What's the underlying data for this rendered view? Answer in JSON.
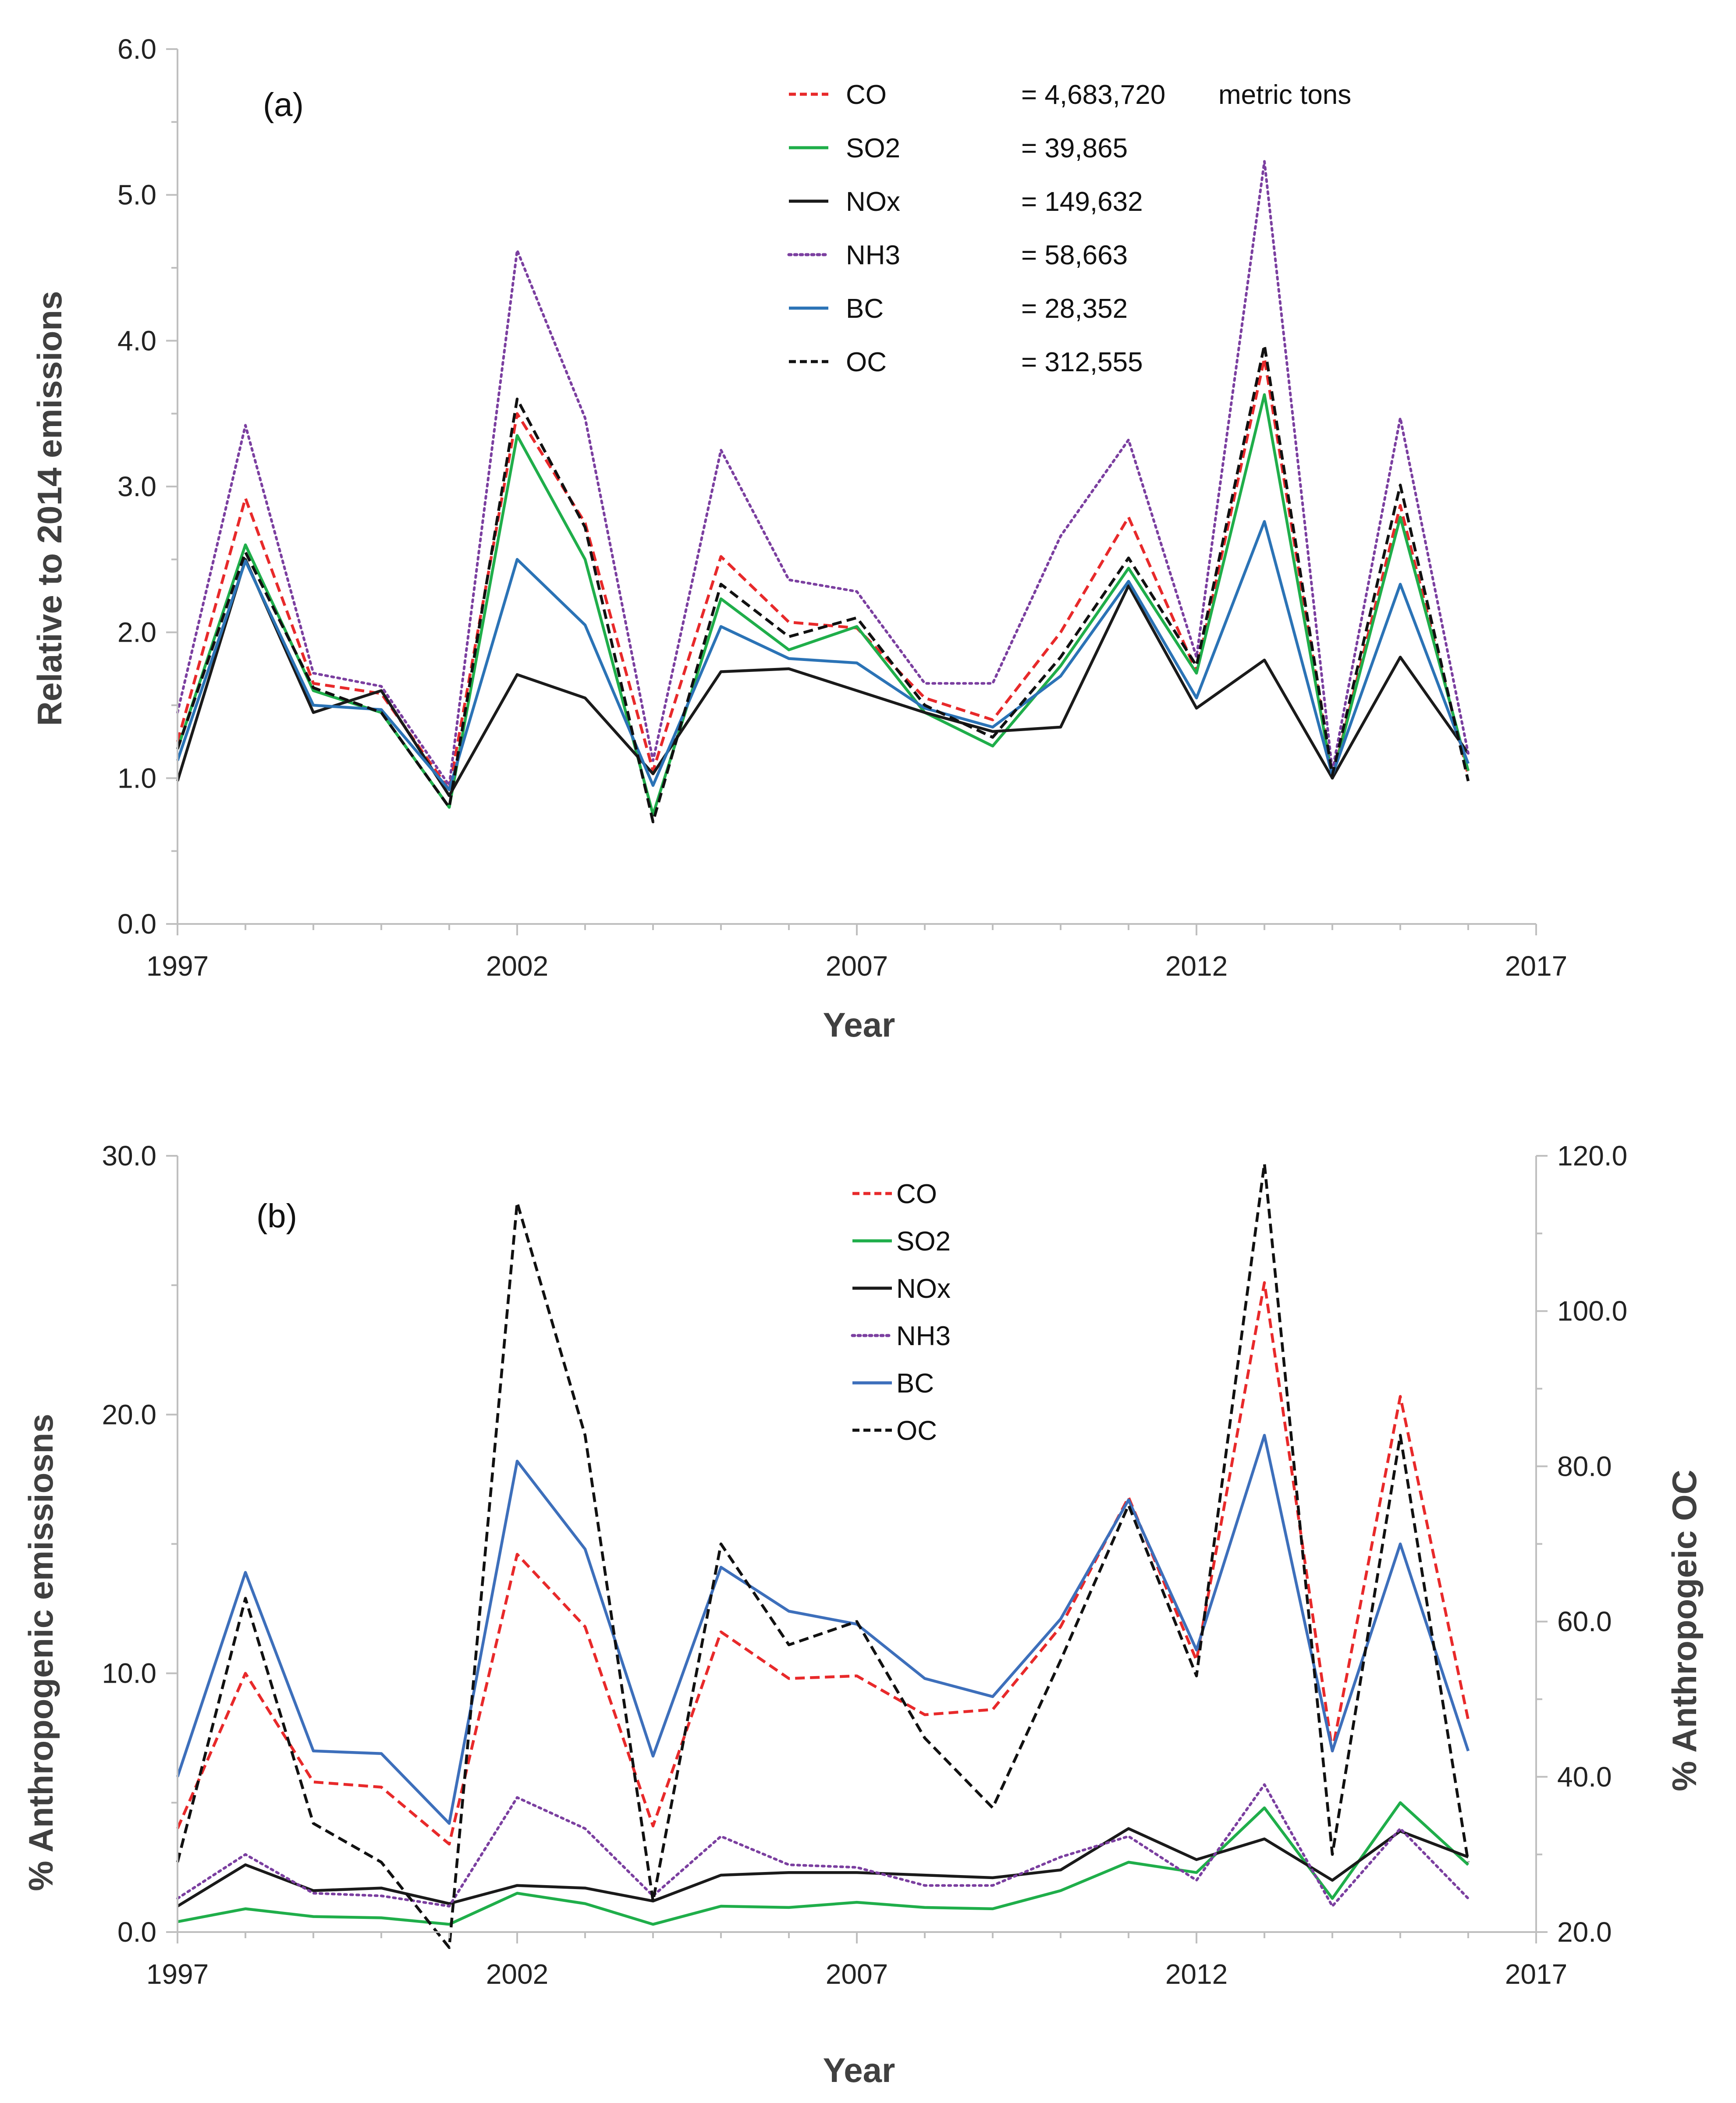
{
  "chart_data": [
    {
      "type": "line",
      "panel_label": "(a)",
      "xlabel": "Year",
      "ylabel": "Relative to 2014 emissions",
      "xlim": [
        1997,
        2017
      ],
      "ylim": [
        0,
        6
      ],
      "xticks": [
        "1997",
        "2002",
        "2007",
        "2012",
        "2017"
      ],
      "yticks": [
        "0.0",
        "1.0",
        "2.0",
        "3.0",
        "4.0",
        "5.0",
        "6.0"
      ],
      "x": [
        1997,
        1998,
        1999,
        2000,
        2001,
        2002,
        2003,
        2004,
        2005,
        2006,
        2007,
        2008,
        2009,
        2010,
        2011,
        2012,
        2013,
        2014,
        2015,
        2016
      ],
      "legend_unit": "metric tons",
      "series": [
        {
          "name": "CO",
          "legend_value": "= 4,683,720",
          "color": "#e8292a",
          "dash": "dash",
          "values": [
            1.25,
            2.92,
            1.65,
            1.58,
            0.92,
            3.5,
            2.75,
            1.05,
            2.52,
            2.07,
            2.03,
            1.55,
            1.4,
            2.0,
            2.79,
            1.73,
            3.88,
            1.0,
            2.87,
            1.02
          ]
        },
        {
          "name": "SO2",
          "legend_value": "= 39,865",
          "color": "#1fae4a",
          "dash": "solid",
          "values": [
            1.2,
            2.6,
            1.6,
            1.45,
            0.8,
            3.35,
            2.5,
            0.75,
            2.23,
            1.88,
            2.04,
            1.45,
            1.22,
            1.77,
            2.44,
            1.72,
            3.63,
            1.0,
            2.79,
            1.05
          ]
        },
        {
          "name": "NOx",
          "legend_value": "= 149,632",
          "color": "#1a1a1a",
          "dash": "solid",
          "values": [
            0.98,
            2.5,
            1.45,
            1.6,
            0.88,
            1.71,
            1.55,
            1.03,
            1.73,
            1.75,
            1.6,
            1.45,
            1.32,
            1.35,
            2.32,
            1.48,
            1.81,
            1.0,
            1.83,
            1.17
          ]
        },
        {
          "name": "NH3",
          "legend_value": "= 58,663",
          "color": "#7b3fa0",
          "dash": "dot",
          "values": [
            1.45,
            3.42,
            1.72,
            1.63,
            0.95,
            4.62,
            3.47,
            1.12,
            3.25,
            2.36,
            2.28,
            1.65,
            1.65,
            2.66,
            3.32,
            1.83,
            5.23,
            1.05,
            3.47,
            1.17
          ]
        },
        {
          "name": "BC",
          "legend_value": "= 28,352",
          "color": "#2b73b6",
          "dash": "solid",
          "values": [
            1.12,
            2.49,
            1.5,
            1.47,
            0.92,
            2.5,
            2.05,
            0.95,
            2.04,
            1.82,
            1.79,
            1.48,
            1.35,
            1.7,
            2.35,
            1.55,
            2.76,
            1.02,
            2.33,
            1.1
          ]
        },
        {
          "name": "OC",
          "legend_value": "= 312,555",
          "color": "#111111",
          "dash": "dash",
          "values": [
            1.2,
            2.55,
            1.62,
            1.45,
            0.8,
            3.6,
            2.72,
            0.7,
            2.33,
            1.97,
            2.1,
            1.5,
            1.28,
            1.83,
            2.51,
            1.77,
            3.97,
            1.02,
            3.01,
            0.98
          ]
        }
      ]
    },
    {
      "type": "line",
      "panel_label": "(b)",
      "xlabel": "Year",
      "ylabel": "% Anthropogenic emissiosns",
      "ylabel_right": "% Anthropogeic OC",
      "xlim": [
        1997,
        2017
      ],
      "ylim": [
        0,
        30
      ],
      "ylim_right": [
        20,
        120
      ],
      "xticks": [
        "1997",
        "2002",
        "2007",
        "2012",
        "2017"
      ],
      "yticks": [
        "0.0",
        "10.0",
        "20.0",
        "30.0"
      ],
      "yticks_right": [
        "20.0",
        "40.0",
        "60.0",
        "80.0",
        "100.0",
        "120.0"
      ],
      "x": [
        1997,
        1998,
        1999,
        2000,
        2001,
        2002,
        2003,
        2004,
        2005,
        2006,
        2007,
        2008,
        2009,
        2010,
        2011,
        2012,
        2013,
        2014,
        2015,
        2016
      ],
      "series": [
        {
          "name": "CO",
          "color": "#e8292a",
          "dash": "dash",
          "axis": "left",
          "values": [
            4.0,
            10.0,
            5.8,
            5.6,
            3.4,
            14.6,
            11.8,
            4.1,
            11.6,
            9.8,
            9.9,
            8.4,
            8.6,
            11.8,
            16.8,
            10.5,
            25.1,
            7.0,
            20.7,
            8.2
          ]
        },
        {
          "name": "SO2",
          "color": "#1fae4a",
          "dash": "solid",
          "axis": "left",
          "values": [
            0.4,
            0.9,
            0.6,
            0.55,
            0.3,
            1.5,
            1.1,
            0.3,
            1.0,
            0.95,
            1.15,
            0.95,
            0.9,
            1.6,
            2.7,
            2.3,
            4.8,
            1.3,
            5.0,
            2.6
          ]
        },
        {
          "name": "NOx",
          "color": "#1a1a1a",
          "dash": "solid",
          "axis": "left",
          "values": [
            1.0,
            2.6,
            1.6,
            1.7,
            1.1,
            1.8,
            1.7,
            1.2,
            2.2,
            2.3,
            2.3,
            2.2,
            2.1,
            2.4,
            4.0,
            2.8,
            3.6,
            2.0,
            3.9,
            2.9
          ]
        },
        {
          "name": "NH3",
          "color": "#7b3fa0",
          "dash": "dot",
          "axis": "left",
          "values": [
            1.3,
            3.0,
            1.5,
            1.4,
            1.0,
            5.2,
            4.0,
            1.4,
            3.7,
            2.6,
            2.5,
            1.8,
            1.8,
            2.9,
            3.7,
            2.0,
            5.7,
            1.0,
            4.0,
            1.3
          ]
        },
        {
          "name": "BC",
          "color": "#3d6fbb",
          "dash": "solid",
          "axis": "left",
          "values": [
            6.0,
            13.9,
            7.0,
            6.9,
            4.2,
            18.2,
            14.8,
            6.8,
            14.1,
            12.4,
            11.9,
            9.8,
            9.1,
            12.1,
            16.7,
            10.9,
            19.2,
            7.0,
            15.0,
            7.0
          ]
        },
        {
          "name": "OC",
          "color": "#111111",
          "dash": "dash",
          "axis": "right",
          "values": [
            29,
            63,
            34,
            29,
            18,
            114,
            84,
            24,
            70,
            57,
            60,
            45,
            36,
            55,
            75,
            53,
            119,
            30,
            84,
            29
          ]
        }
      ]
    }
  ]
}
